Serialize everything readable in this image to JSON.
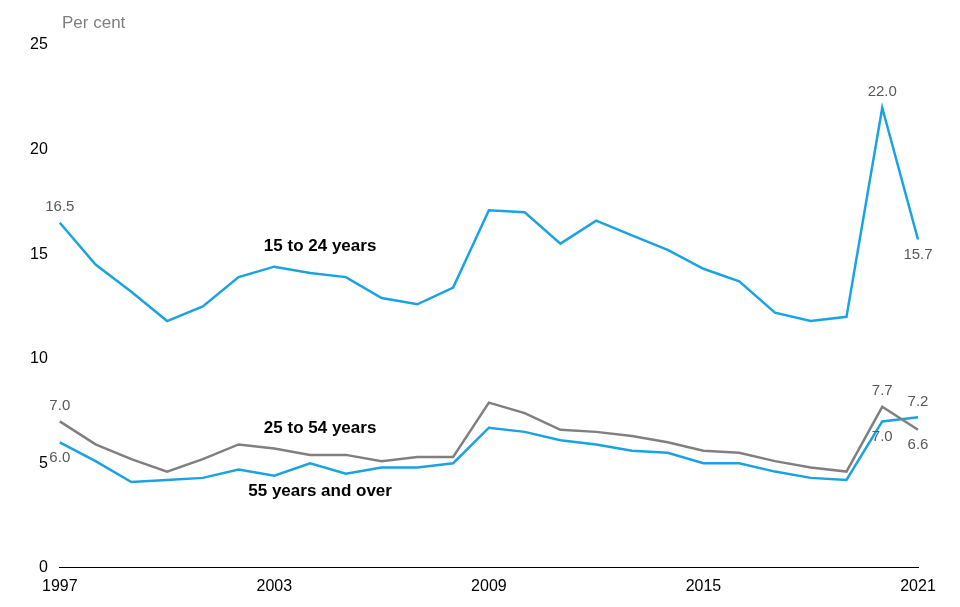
{
  "chart_data": {
    "type": "line",
    "y_label": "Per cent",
    "categories": [
      "1997",
      null,
      null,
      null,
      null,
      null,
      "2003",
      null,
      null,
      null,
      null,
      null,
      "2009",
      null,
      null,
      null,
      null,
      null,
      "2015",
      null,
      null,
      null,
      null,
      null,
      "2021"
    ],
    "series": [
      {
        "name": "15 to 24 years",
        "color": "#1aa3e3",
        "values": [
          16.5,
          14.5,
          13.2,
          11.8,
          12.5,
          13.9,
          14.4,
          14.1,
          13.9,
          12.9,
          12.6,
          13.4,
          17.1,
          17.0,
          15.5,
          16.6,
          15.9,
          15.2,
          14.3,
          13.7,
          12.2,
          11.8,
          12.0,
          22.0,
          15.7
        ],
        "value_labels": [
          "16.5",
          null,
          null,
          null,
          null,
          null,
          null,
          null,
          null,
          null,
          null,
          null,
          null,
          null,
          null,
          null,
          null,
          null,
          null,
          null,
          null,
          null,
          null,
          "22.0",
          "15.7"
        ]
      },
      {
        "name": "25 to 54 years",
        "color": "#808080",
        "values": [
          7.0,
          5.9,
          5.2,
          4.6,
          5.2,
          5.9,
          5.7,
          5.4,
          5.4,
          5.1,
          5.3,
          5.3,
          7.9,
          7.4,
          6.6,
          6.5,
          6.3,
          6.0,
          5.6,
          5.5,
          5.1,
          4.8,
          4.6,
          7.7,
          6.6
        ],
        "value_labels": [
          "7.0",
          null,
          null,
          null,
          null,
          null,
          null,
          null,
          null,
          null,
          null,
          null,
          null,
          null,
          null,
          null,
          null,
          null,
          null,
          null,
          null,
          null,
          null,
          "7.7",
          "6.6"
        ]
      },
      {
        "name": "55 years and over",
        "color": "#1aa3e3",
        "values": [
          6.0,
          5.1,
          4.1,
          4.2,
          4.3,
          4.7,
          4.4,
          5.0,
          4.5,
          4.8,
          4.8,
          5.0,
          6.7,
          6.5,
          6.1,
          5.9,
          5.6,
          5.5,
          5.0,
          5.0,
          4.6,
          4.3,
          4.2,
          7.0,
          7.2
        ],
        "value_labels": [
          "6.0",
          null,
          null,
          null,
          null,
          null,
          null,
          null,
          null,
          null,
          null,
          null,
          null,
          null,
          null,
          null,
          null,
          null,
          null,
          null,
          null,
          null,
          null,
          "7.0",
          "7.2"
        ]
      }
    ],
    "ylim": [
      0,
      25
    ],
    "yticks": [
      0,
      5,
      10,
      15,
      20,
      25
    ],
    "grid": false,
    "legend": false
  }
}
